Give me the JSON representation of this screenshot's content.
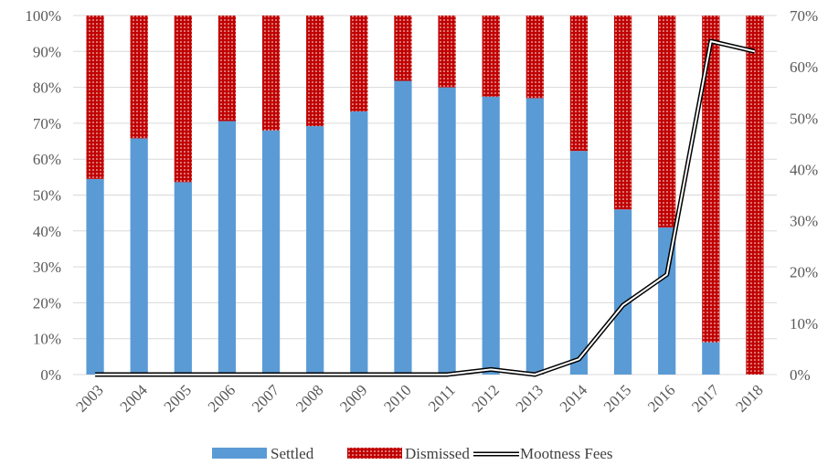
{
  "chart_data": {
    "type": "bar",
    "stacked": true,
    "categories": [
      "2003",
      "2004",
      "2005",
      "2006",
      "2007",
      "2008",
      "2009",
      "2010",
      "2011",
      "2012",
      "2013",
      "2014",
      "2015",
      "2016",
      "2017",
      "2018"
    ],
    "series": [
      {
        "name": "Settled",
        "kind": "bar",
        "axis": "left",
        "color": "#5b9bd5",
        "values": [
          54.5,
          65.8,
          53.6,
          70.6,
          68.0,
          69.2,
          73.3,
          81.8,
          80.0,
          77.4,
          77.0,
          62.3,
          46.0,
          41.0,
          9.0,
          0.0
        ]
      },
      {
        "name": "Dismissed",
        "kind": "bar",
        "axis": "left",
        "color": "#c00000",
        "pattern": "dots",
        "values": [
          45.5,
          34.2,
          46.4,
          29.4,
          32.0,
          30.8,
          26.7,
          18.2,
          20.0,
          22.6,
          23.0,
          37.7,
          54.0,
          59.0,
          91.0,
          100.0
        ]
      },
      {
        "name": "Mootness Fees",
        "kind": "line",
        "axis": "right",
        "color": "#000000",
        "values": [
          0,
          0,
          0,
          0,
          0,
          0,
          0,
          0,
          0,
          1,
          0,
          3,
          13.5,
          19.5,
          65,
          63
        ]
      }
    ],
    "y_left": {
      "ylim": [
        0,
        100
      ],
      "ticks": [
        "0%",
        "10%",
        "20%",
        "30%",
        "40%",
        "50%",
        "60%",
        "70%",
        "80%",
        "90%",
        "100%"
      ]
    },
    "y_right": {
      "ylim": [
        0,
        70
      ],
      "ticks": [
        "0%",
        "10%",
        "20%",
        "30%",
        "40%",
        "50%",
        "60%",
        "70%"
      ]
    },
    "grid": true,
    "legend_placement": "bottom"
  }
}
